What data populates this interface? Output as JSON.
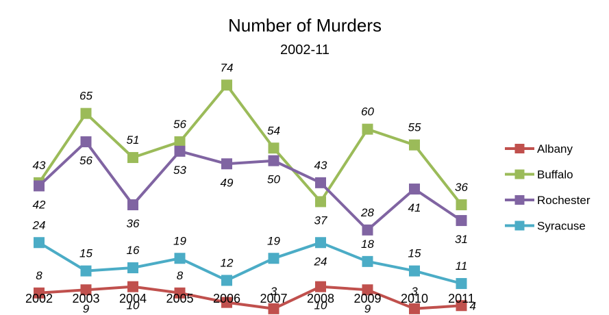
{
  "chart_data": {
    "type": "line",
    "title": "Number of Murders",
    "subtitle": "2002-11",
    "xlabel": "",
    "ylabel": "",
    "x": [
      "2002",
      "2003",
      "2004",
      "2005",
      "2006",
      "2007",
      "2008",
      "2009",
      "2010",
      "2011"
    ],
    "ylim": [
      0,
      75
    ],
    "grid": false,
    "legend": "right",
    "series": [
      {
        "name": "Albany",
        "color": "#c0504d",
        "values": [
          8,
          9,
          10,
          8,
          5,
          3,
          10,
          9,
          3,
          4
        ]
      },
      {
        "name": "Buffalo",
        "color": "#9bbb59",
        "values": [
          43,
          65,
          51,
          56,
          74,
          54,
          37,
          60,
          55,
          36
        ]
      },
      {
        "name": "Rochester",
        "color": "#8064a2",
        "values": [
          42,
          56,
          36,
          53,
          49,
          50,
          43,
          28,
          41,
          31
        ]
      },
      {
        "name": "Syracuse",
        "color": "#4bacc6",
        "values": [
          24,
          15,
          16,
          19,
          12,
          19,
          24,
          18,
          15,
          11
        ]
      }
    ]
  }
}
